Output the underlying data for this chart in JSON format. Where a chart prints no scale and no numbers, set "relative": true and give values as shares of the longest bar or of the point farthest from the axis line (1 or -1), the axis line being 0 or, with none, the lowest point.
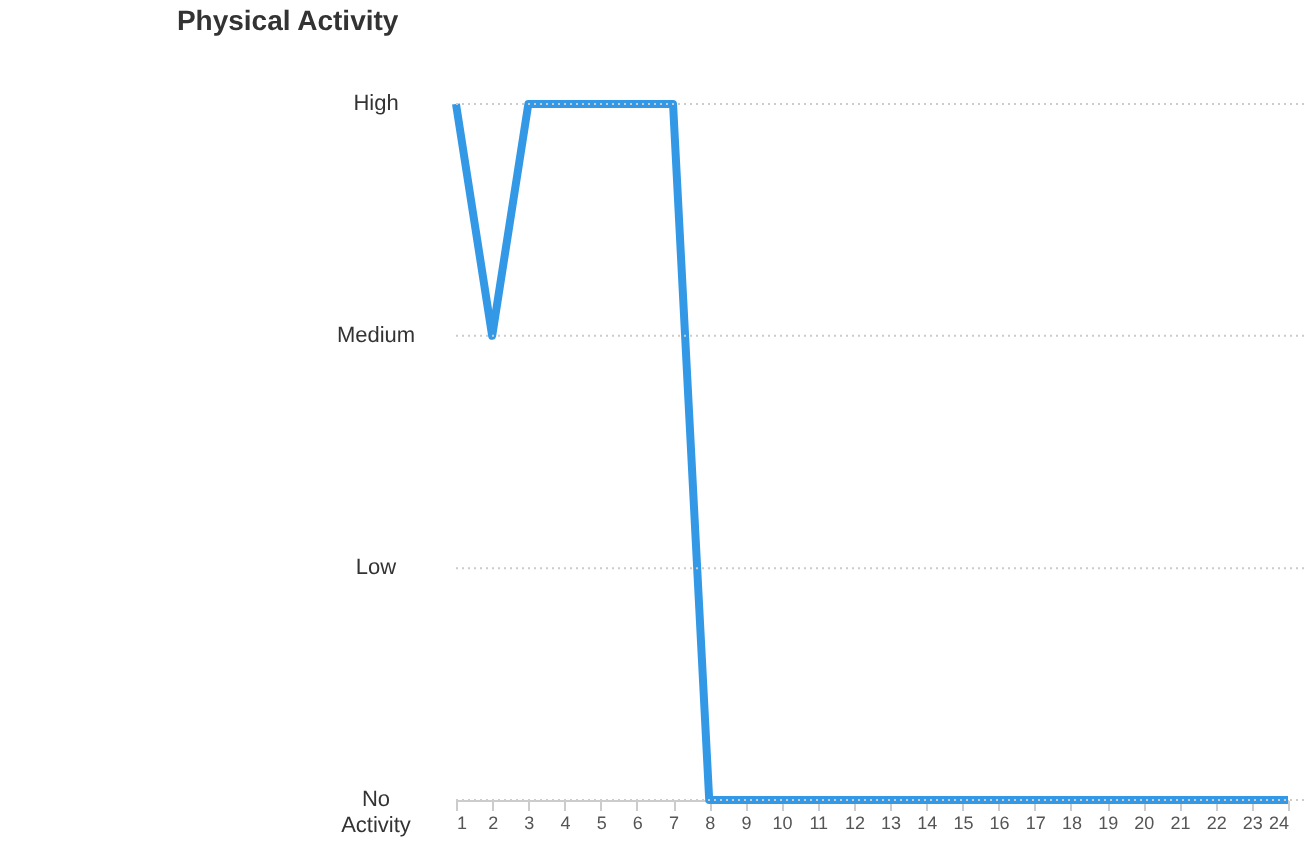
{
  "chart_data": {
    "type": "line",
    "title": "Physical Activity",
    "x": [
      1,
      2,
      3,
      4,
      5,
      6,
      7,
      8,
      9,
      10,
      11,
      12,
      13,
      14,
      15,
      16,
      17,
      18,
      19,
      20,
      21,
      22,
      23,
      24
    ],
    "series": [
      {
        "color": "#3399e6",
        "values": [
          1,
          0.667,
          1,
          1,
          1,
          1,
          1,
          0,
          0,
          0,
          0,
          0,
          0,
          0,
          0,
          0,
          0,
          0,
          0,
          0,
          0,
          0,
          0,
          0
        ]
      }
    ],
    "relative": true,
    "xlim": [
      1,
      24
    ],
    "xticks": [
      1,
      2,
      3,
      4,
      5,
      6,
      7,
      8,
      9,
      10,
      11,
      12,
      13,
      14,
      15,
      16,
      17,
      18,
      19,
      20,
      21,
      22,
      23,
      24
    ],
    "ref_lines": [
      {
        "axis": "y",
        "value": 0,
        "label": "No Activity",
        "color": "#cccccc",
        "line_style": "dotted"
      },
      {
        "axis": "y",
        "value": 0.333,
        "label": "Low",
        "color": "#cccccc",
        "line_style": "dotted"
      },
      {
        "axis": "y",
        "value": 0.667,
        "label": "Medium",
        "color": "#cccccc",
        "line_style": "dotted"
      },
      {
        "axis": "y",
        "value": 1,
        "label": "High",
        "color": "#cccccc",
        "line_style": "dotted"
      }
    ],
    "marker": "none",
    "line_style": "solid"
  }
}
